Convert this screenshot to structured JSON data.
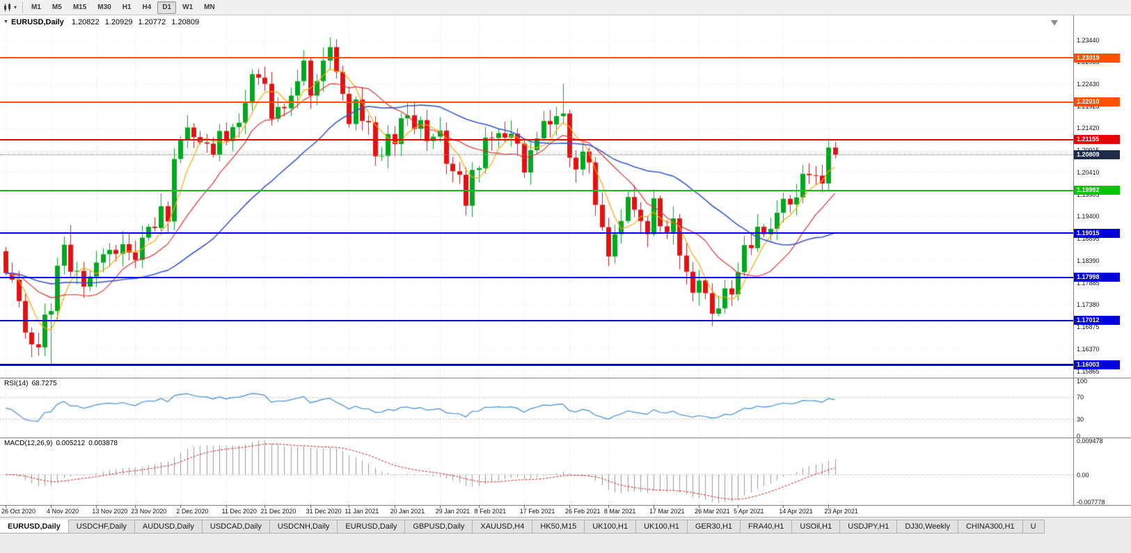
{
  "toolbar": {
    "timeframes": [
      "M1",
      "M5",
      "M15",
      "M30",
      "H1",
      "H4",
      "D1",
      "W1",
      "MN"
    ],
    "active_timeframe": "D1"
  },
  "chart": {
    "title": "EURUSD,Daily",
    "ohlc": {
      "open": "1.20822",
      "high": "1.20929",
      "low": "1.20772",
      "close": "1.20809"
    }
  },
  "icons": {
    "chart_type": "candlestick-chart",
    "dropdown_glyph": "▾",
    "title_marker_glyph": "▼",
    "shift_marker": "chart-shift-triangle"
  },
  "chart_data": {
    "type": "candlestick",
    "symbol": "EURUSD",
    "timeframe": "Daily",
    "current_price": 1.20809,
    "current_price_color": "#1E2B4A",
    "candle_up_color": "#00A81E",
    "candle_down_color": "#E01212",
    "first_open": 1.186,
    "closes": [
      1.181,
      1.1795,
      1.1746,
      1.1674,
      1.1647,
      1.164,
      1.1715,
      1.1723,
      1.1827,
      1.1875,
      1.1813,
      1.1815,
      1.1779,
      1.1802,
      1.1834,
      1.1853,
      1.1863,
      1.1854,
      1.1876,
      1.1857,
      1.184,
      1.1891,
      1.1916,
      1.1913,
      1.1963,
      1.1928,
      1.2071,
      1.2115,
      1.2143,
      1.2121,
      1.2109,
      1.2106,
      1.2081,
      1.2135,
      1.2112,
      1.2144,
      1.2154,
      1.2199,
      1.2265,
      1.2257,
      1.2243,
      1.2163,
      1.219,
      1.2187,
      1.2216,
      1.2249,
      1.2296,
      1.2216,
      1.2249,
      1.2296,
      1.2327,
      1.227,
      1.222,
      1.2151,
      1.2207,
      1.2158,
      1.2155,
      1.2077,
      1.2078,
      1.2128,
      1.2105,
      1.2164,
      1.2171,
      1.214,
      1.216,
      1.2112,
      1.2122,
      1.2136,
      1.206,
      1.2043,
      1.2035,
      1.1964,
      1.2046,
      1.205,
      1.212,
      1.2119,
      1.213,
      1.212,
      1.2129,
      1.2106,
      1.204,
      1.2091,
      1.2118,
      1.2158,
      1.215,
      1.2169,
      1.2175,
      1.2074,
      1.2047,
      1.2088,
      1.2063,
      1.1966,
      1.1915,
      1.1848,
      1.1899,
      1.1929,
      1.1984,
      1.1955,
      1.1929,
      1.1899,
      1.1981,
      1.1917,
      1.1903,
      1.1935,
      1.185,
      1.1813,
      1.1765,
      1.1793,
      1.1764,
      1.1717,
      1.1729,
      1.1775,
      1.1761,
      1.1812,
      1.1874,
      1.1867,
      1.1916,
      1.1899,
      1.1911,
      1.1948,
      1.198,
      1.1967,
      1.1983,
      1.2037,
      1.2034,
      1.2033,
      1.2015,
      1.2097,
      1.2081
    ],
    "wick_overrides": {
      "7": {
        "low": 1.1602
      },
      "10": {
        "high": 1.192
      },
      "50": {
        "high": 1.2349
      },
      "86": {
        "high": 1.2243
      }
    },
    "date_labels": [
      {
        "label": "26 Oct 2020",
        "index": 0
      },
      {
        "label": "4 Nov 2020",
        "index": 7
      },
      {
        "label": "13 Nov 2020",
        "index": 14
      },
      {
        "label": "23 Nov 2020",
        "index": 20
      },
      {
        "label": "2 Dec 2020",
        "index": 27
      },
      {
        "label": "11 Dec 2020",
        "index": 34
      },
      {
        "label": "21 Dec 2020",
        "index": 40
      },
      {
        "label": "31 Dec 2020",
        "index": 47
      },
      {
        "label": "11 Jan 2021",
        "index": 53
      },
      {
        "label": "20 Jan 2021",
        "index": 60
      },
      {
        "label": "29 Jan 2021",
        "index": 67
      },
      {
        "label": "8 Feb 2021",
        "index": 73
      },
      {
        "label": "17 Feb 2021",
        "index": 80
      },
      {
        "label": "26 Feb 2021",
        "index": 87
      },
      {
        "label": "8 Mar 2021",
        "index": 93
      },
      {
        "label": "17 Mar 2021",
        "index": 100
      },
      {
        "label": "26 Mar 2021",
        "index": 107
      },
      {
        "label": "5 Apr 2021",
        "index": 113
      },
      {
        "label": "14 Apr 2021",
        "index": 120
      },
      {
        "label": "23 Apr 2021",
        "index": 127
      }
    ],
    "price_ticks": [
      "1.23440",
      "1.22935",
      "1.22430",
      "1.21925",
      "1.21420",
      "1.20915",
      "1.20410",
      "1.19905",
      "1.19400",
      "1.18895",
      "1.18390",
      "1.17885",
      "1.17380",
      "1.16875",
      "1.16370",
      "1.15865"
    ],
    "levels": [
      {
        "price": 1.23019,
        "color": "#FF5000",
        "thickness": 2
      },
      {
        "price": 1.2201,
        "color": "#FF5000",
        "thickness": 2
      },
      {
        "price": 1.21155,
        "color": "#E80000",
        "thickness": 2
      },
      {
        "price": 1.19992,
        "color": "#00C800",
        "thickness": 2
      },
      {
        "price": 1.19015,
        "color": "#0000D8",
        "thickness": 2
      },
      {
        "price": 1.17998,
        "color": "#0000D8",
        "thickness": 2
      },
      {
        "price": 1.17012,
        "color": "#0000D8",
        "thickness": 2
      },
      {
        "price": 1.16003,
        "color": "#0000D8",
        "thickness": 3
      }
    ],
    "moving_averages": [
      {
        "period": 5,
        "color": "#FFA500"
      },
      {
        "period": 13,
        "color": "#E03030"
      },
      {
        "period": 30,
        "color": "#3A57D0"
      }
    ],
    "indicators": {
      "rsi": {
        "name": "RSI(14)",
        "value": "68.7275",
        "ticks": [
          "100",
          "70",
          "30",
          "0"
        ],
        "guide_levels": [
          70,
          30
        ],
        "line_color": "#5B9BD5"
      },
      "macd": {
        "name": "MACD(12,26,9)",
        "main_value": "0.005212",
        "signal_value": "0.003878",
        "ticks": [
          "0.009478",
          "0.00",
          "-0.007778"
        ],
        "histogram_color": "#989898",
        "signal_color": "#D02020"
      }
    }
  },
  "tabs": [
    {
      "label": "EURUSD,Daily",
      "active": true
    },
    {
      "label": "USDCHF,Daily"
    },
    {
      "label": "AUDUSD,Daily"
    },
    {
      "label": "USDCAD,Daily"
    },
    {
      "label": "USDCNH,Daily"
    },
    {
      "label": "EURUSD,Daily"
    },
    {
      "label": "GBPUSD,Daily"
    },
    {
      "label": "XAUUSD,H4"
    },
    {
      "label": "HK50,M15"
    },
    {
      "label": "UK100,H1"
    },
    {
      "label": "UK100,H1"
    },
    {
      "label": "GER30,H1"
    },
    {
      "label": "FRA40,H1"
    },
    {
      "label": "USOil,H1"
    },
    {
      "label": "USDJPY,H1"
    },
    {
      "label": "DJ30,Weekly"
    },
    {
      "label": "CHINA300,H1"
    },
    {
      "label": "U"
    }
  ]
}
